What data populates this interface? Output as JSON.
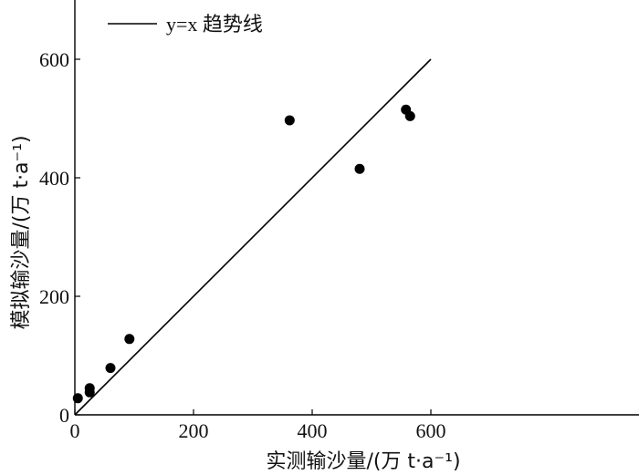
{
  "chart_data": {
    "type": "scatter",
    "xlabel": "实测输沙量/(万 t·a⁻¹)",
    "ylabel": "模拟输沙量/(万 t·a⁻¹)",
    "xlim": [
      0,
      700
    ],
    "ylim": [
      0,
      700
    ],
    "xticks": [
      0,
      200,
      400,
      600
    ],
    "yticks": [
      0,
      200,
      400,
      600
    ],
    "grid": false,
    "legend_position": "top-left",
    "series": [
      {
        "type": "line",
        "name": "y=x 趋势线",
        "x": [
          0,
          600
        ],
        "y": [
          0,
          600
        ]
      },
      {
        "type": "scatter",
        "x": [
          5,
          25,
          25,
          60,
          92,
          362,
          480,
          558,
          565
        ],
        "y": [
          28,
          38,
          45,
          79,
          128,
          497,
          415,
          515,
          504
        ]
      }
    ]
  }
}
